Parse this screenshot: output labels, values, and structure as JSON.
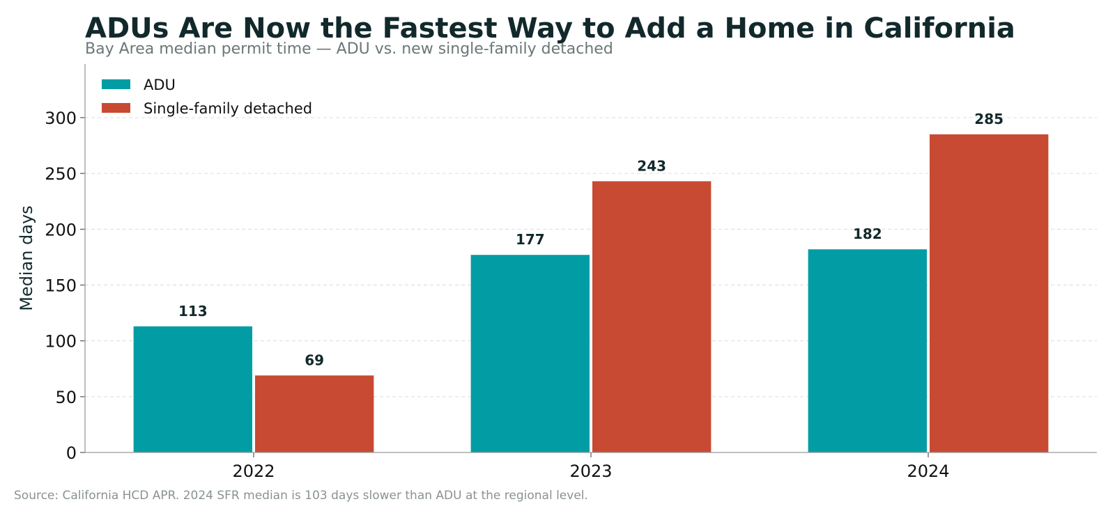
{
  "header": {
    "title": "ADUs Are Now the Fastest Way to Add a Home in California",
    "subtitle": "Bay Area median permit time — ADU vs. new single-family detached"
  },
  "footer": {
    "source": "Source: California HCD APR. 2024 SFR median is 103 days slower than ADU at the regional level."
  },
  "chart_data": {
    "type": "bar",
    "title": "ADUs Are Now the Fastest Way to Add a Home in California",
    "subtitle": "Bay Area median permit time — ADU vs. new single-family detached",
    "xlabel": "",
    "ylabel": "Median days",
    "categories": [
      "2022",
      "2023",
      "2024"
    ],
    "series": [
      {
        "name": "ADU",
        "values": [
          113,
          177,
          182
        ],
        "color": "#029da4"
      },
      {
        "name": "Single-family detached",
        "values": [
          69,
          243,
          285
        ],
        "color": "#c84a32"
      }
    ],
    "ylim": [
      0,
      348
    ],
    "yticks": [
      0,
      50,
      100,
      150,
      200,
      250,
      300
    ],
    "grid": {
      "y": true,
      "x": false,
      "style": "dashed"
    },
    "legend": "top-left",
    "data_labels": true
  }
}
